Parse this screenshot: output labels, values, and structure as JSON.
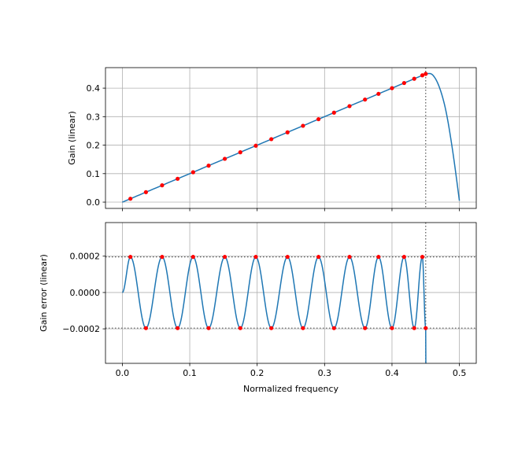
{
  "chart_data": [
    {
      "type": "line",
      "title": "",
      "xlabel": "",
      "ylabel": "Gain (linear)",
      "xlim": [
        -0.025,
        0.525
      ],
      "ylim": [
        -0.022,
        0.472
      ],
      "xticks": [
        0.0,
        0.1,
        0.2,
        0.3,
        0.4,
        0.5
      ],
      "xtick_labels_visible": false,
      "yticks": [
        0.0,
        0.1,
        0.2,
        0.3,
        0.4
      ],
      "ytick_labels": [
        "0.0",
        "0.1",
        "0.2",
        "0.3",
        "0.4"
      ],
      "grid": true,
      "reference_lines": {
        "vertical_x": 0.45,
        "style": "dotted"
      },
      "series": [
        {
          "style": "line",
          "color": "#1f77b4",
          "x": [
            0,
            0.05,
            0.1,
            0.15,
            0.2,
            0.25,
            0.3,
            0.35,
            0.4,
            0.43,
            0.445,
            0.45,
            0.46,
            0.47,
            0.48,
            0.49,
            0.5
          ],
          "y": [
            0,
            0.05,
            0.1,
            0.15,
            0.2,
            0.25,
            0.3,
            0.35,
            0.4,
            0.43,
            0.445,
            0.45,
            0.447,
            0.405,
            0.32,
            0.18,
            0.005
          ]
        },
        {
          "style": "markers",
          "color": "#ff0000",
          "x": [
            0.012,
            0.035,
            0.059,
            0.082,
            0.105,
            0.128,
            0.152,
            0.175,
            0.198,
            0.221,
            0.245,
            0.268,
            0.291,
            0.314,
            0.337,
            0.36,
            0.38,
            0.4,
            0.418,
            0.433,
            0.445,
            0.45
          ],
          "y": [
            0.012,
            0.035,
            0.059,
            0.082,
            0.105,
            0.128,
            0.152,
            0.175,
            0.198,
            0.221,
            0.245,
            0.268,
            0.291,
            0.314,
            0.337,
            0.36,
            0.38,
            0.4,
            0.418,
            0.433,
            0.445,
            0.45
          ]
        }
      ]
    },
    {
      "type": "line",
      "title": "",
      "xlabel": "Normalized frequency",
      "ylabel": "Gain error (linear)",
      "xlim": [
        -0.025,
        0.525
      ],
      "ylim": [
        -0.00039,
        0.000385
      ],
      "xticks": [
        0.0,
        0.1,
        0.2,
        0.3,
        0.4,
        0.5
      ],
      "xtick_labels": [
        "0.0",
        "0.1",
        "0.2",
        "0.3",
        "0.4",
        "0.5"
      ],
      "yticks": [
        -0.0002,
        0.0,
        0.0002
      ],
      "ytick_labels": [
        "−0.0002",
        "0.0000",
        "0.0002"
      ],
      "grid": true,
      "reference_lines": {
        "horizontal_y": [
          0.000196,
          -0.000196
        ],
        "vertical_x": 0.45,
        "style": "dotted"
      },
      "series": [
        {
          "style": "line",
          "color": "#1f77b4",
          "x": [
            0,
            0.012,
            0.035,
            0.059,
            0.082,
            0.105,
            0.128,
            0.152,
            0.175,
            0.198,
            0.221,
            0.245,
            0.268,
            0.291,
            0.314,
            0.337,
            0.36,
            0.38,
            0.4,
            0.418,
            0.433,
            0.445,
            0.45
          ],
          "y": [
            0,
            0.000196,
            -0.000196,
            0.000196,
            -0.000196,
            0.000196,
            -0.000196,
            0.000196,
            -0.000196,
            0.000196,
            -0.000196,
            0.000196,
            -0.000196,
            0.000196,
            -0.000196,
            0.000196,
            -0.000196,
            0.000196,
            -0.000196,
            0.000196,
            -0.000196,
            0.000196,
            -0.000196
          ]
        },
        {
          "style": "markers",
          "color": "#ff0000",
          "x": [
            0.012,
            0.035,
            0.059,
            0.082,
            0.105,
            0.128,
            0.152,
            0.175,
            0.198,
            0.221,
            0.245,
            0.268,
            0.291,
            0.314,
            0.337,
            0.36,
            0.38,
            0.4,
            0.418,
            0.433,
            0.445,
            0.45
          ],
          "y": [
            0.000196,
            -0.000196,
            0.000196,
            -0.000196,
            0.000196,
            -0.000196,
            0.000196,
            -0.000196,
            0.000196,
            -0.000196,
            0.000196,
            -0.000196,
            0.000196,
            -0.000196,
            0.000196,
            -0.000196,
            0.000196,
            -0.000196,
            0.000196,
            -0.000196,
            0.000196,
            -0.000196
          ]
        }
      ]
    }
  ]
}
